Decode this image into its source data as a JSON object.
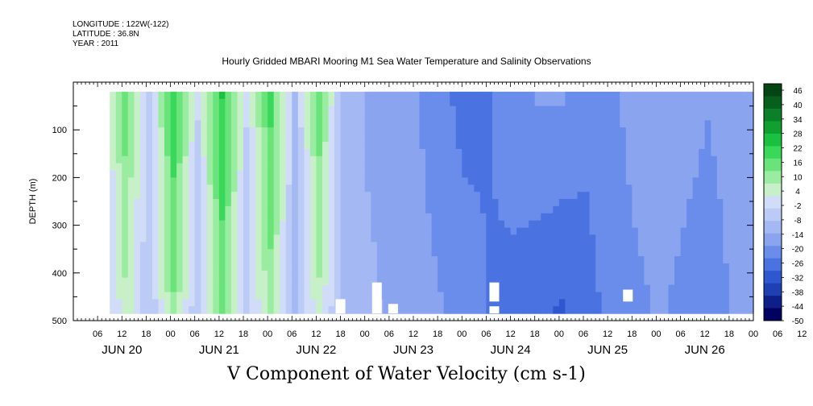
{
  "header": {
    "longitude": "LONGITUDE : 122W(-122)",
    "latitude": "LATITUDE : 36.8N",
    "year": "YEAR : 2011"
  },
  "chart_data": {
    "type": "heatmap",
    "title": "Hourly Gridded MBARI Mooring M1 Sea Water Temperature and Salinity Observations",
    "variable_label": "V Component of Water Velocity (cm s-1)",
    "ylabel": "DEPTH (m)",
    "ylim": [
      500,
      0
    ],
    "y_ticks": [
      100,
      200,
      300,
      400,
      500
    ],
    "x_hour_labels": [
      "06",
      "12",
      "18",
      "00",
      "06",
      "12",
      "18",
      "00",
      "06",
      "12",
      "18",
      "00",
      "06",
      "12",
      "18",
      "00",
      "06",
      "12",
      "18",
      "00",
      "06",
      "12",
      "18",
      "00",
      "06",
      "12",
      "18",
      "00",
      "06",
      "12",
      "18",
      "00"
    ],
    "x_day_labels": [
      "JUN 20",
      "JUN 21",
      "JUN 22",
      "JUN 23",
      "JUN 24",
      "JUN 25",
      "JUN 26"
    ],
    "x_range_hours": [
      0,
      168
    ],
    "data_depth_range": [
      20,
      485
    ],
    "colorbar": {
      "labels": [
        "46",
        "40",
        "34",
        "28",
        "22",
        "16",
        "10",
        "4",
        "-2",
        "-8",
        "-14",
        "-20",
        "-26",
        "-32",
        "-38",
        "-44",
        "-50"
      ],
      "min": -50,
      "max": 50,
      "colors": [
        "#000060",
        "#0f1f8a",
        "#1f3fb4",
        "#2f58d0",
        "#4a72e0",
        "#6a8cea",
        "#8aa4f0",
        "#a4b8f4",
        "#bccaf6",
        "#d0dcf8",
        "#c8f0c8",
        "#9aeca0",
        "#6ae47a",
        "#3ad85a",
        "#1ac040",
        "#10a030",
        "#0a8028",
        "#06601c",
        "#044514"
      ]
    },
    "velocity_profile": {
      "hour_nodes": [
        0,
        6,
        12,
        18,
        24,
        30,
        36,
        42,
        48,
        54,
        60,
        66,
        72,
        78,
        84,
        90,
        96,
        102,
        108,
        114,
        120,
        126,
        132,
        138,
        144,
        150,
        156,
        162,
        168
      ],
      "upper_values": [
        12,
        -6,
        16,
        -4,
        22,
        -2,
        24,
        -2,
        20,
        -8,
        16,
        -10,
        -14,
        -16,
        -18,
        -22,
        -26,
        -24,
        -20,
        -18,
        -18,
        -22,
        -20,
        -16,
        -14,
        -16,
        -18,
        -16,
        -14
      ],
      "lower_values": [
        8,
        -10,
        6,
        -8,
        12,
        -8,
        14,
        -6,
        10,
        -10,
        6,
        -12,
        -12,
        -14,
        -16,
        -18,
        -20,
        -24,
        -26,
        -28,
        -30,
        -26,
        -22,
        -20,
        -18,
        -20,
        -22,
        -18,
        -16
      ]
    },
    "missing_data": [
      {
        "hour": 66,
        "depth_from": 455,
        "depth_to": 485
      },
      {
        "hour": 75,
        "depth_from": 420,
        "depth_to": 485
      },
      {
        "hour": 79,
        "depth_from": 465,
        "depth_to": 485
      },
      {
        "hour": 104,
        "depth_from": 420,
        "depth_to": 460
      },
      {
        "hour": 104,
        "depth_from": 470,
        "depth_to": 485
      },
      {
        "hour": 137,
        "depth_from": 435,
        "depth_to": 460
      }
    ]
  }
}
